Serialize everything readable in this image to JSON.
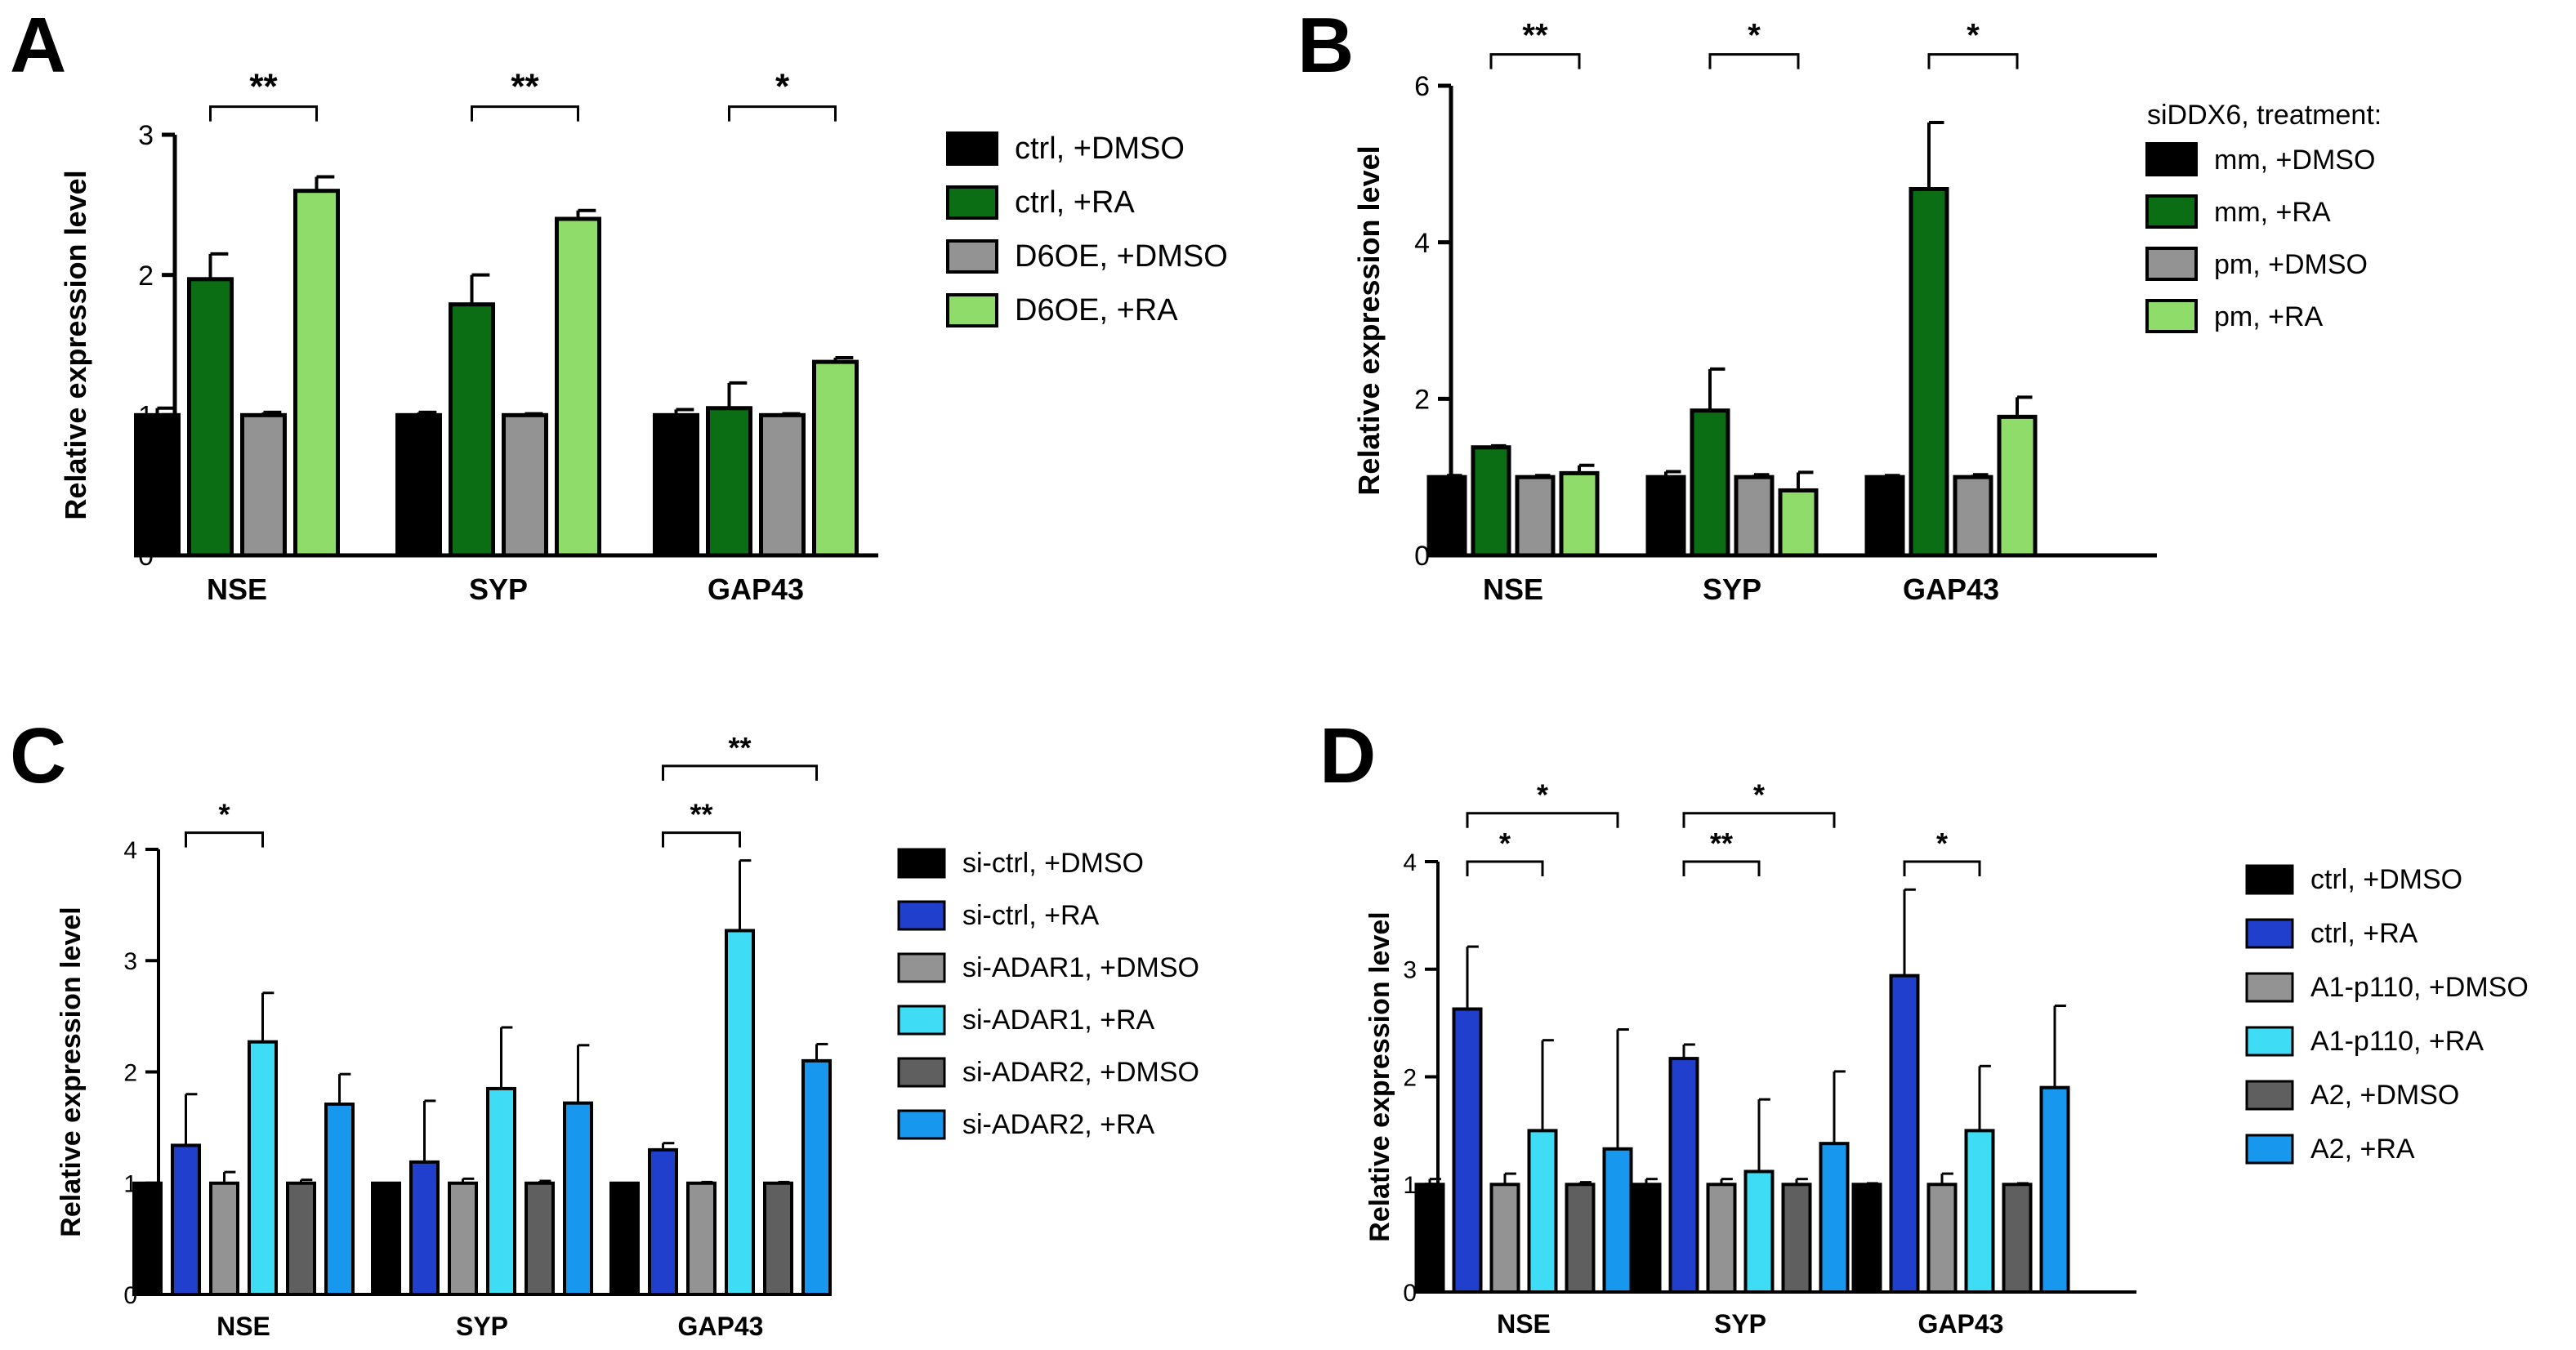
{
  "figure": {
    "panels": [
      {
        "id": "A",
        "letter": "A"
      },
      {
        "id": "B",
        "letter": "B"
      },
      {
        "id": "C",
        "letter": "C"
      },
      {
        "id": "D",
        "letter": "D"
      }
    ]
  },
  "chart_data": [
    {
      "panel": "A",
      "type": "bar",
      "title": "",
      "xlabel": "",
      "ylabel": "Relative expression level",
      "ylim": [
        0,
        3
      ],
      "yticks": [
        "0",
        "1",
        "2",
        "3"
      ],
      "categories": [
        "NSE",
        "SYP",
        "GAP43"
      ],
      "legend_title": "",
      "legend_position": "right",
      "series": [
        {
          "name": "ctrl, +DMSO",
          "color": "#000000",
          "values": [
            1.0,
            1.0,
            1.0
          ],
          "errors": [
            0.05,
            0.02,
            0.04
          ]
        },
        {
          "name": "ctrl, +RA",
          "color": "#0b6e14",
          "values": [
            1.97,
            1.79,
            1.05
          ],
          "errors": [
            0.18,
            0.21,
            0.18
          ]
        },
        {
          "name": "D6OE, +DMSO",
          "color": "#939393",
          "values": [
            1.0,
            1.0,
            1.0
          ],
          "errors": [
            0.02,
            0.01,
            0.01
          ]
        },
        {
          "name": "D6OE, +RA",
          "color": "#8fdc6b",
          "values": [
            2.6,
            2.4,
            1.38
          ],
          "errors": [
            0.1,
            0.06,
            0.03
          ]
        }
      ],
      "significance": [
        {
          "label": "**",
          "category": 0,
          "from_series": 1,
          "to_series": 3,
          "level": 3.2
        },
        {
          "label": "**",
          "category": 1,
          "from_series": 1,
          "to_series": 3,
          "level": 3.2
        },
        {
          "label": "*",
          "category": 2,
          "from_series": 1,
          "to_series": 3,
          "level": 3.2
        }
      ]
    },
    {
      "panel": "B",
      "type": "bar",
      "title": "",
      "xlabel": "",
      "ylabel": "Relative expression level",
      "ylim": [
        0,
        6
      ],
      "yticks": [
        "0",
        "2",
        "4",
        "6"
      ],
      "categories": [
        "NSE",
        "SYP",
        "GAP43"
      ],
      "legend_title": "siDDX6, treatment:",
      "legend_position": "right",
      "series": [
        {
          "name": "mm, +DMSO",
          "color": "#000000",
          "values": [
            1.0,
            1.0,
            1.0
          ],
          "errors": [
            0.02,
            0.07,
            0.02
          ]
        },
        {
          "name": "mm, +RA",
          "color": "#0b6e14",
          "values": [
            1.38,
            1.85,
            4.68
          ],
          "errors": [
            0.02,
            0.53,
            0.85
          ]
        },
        {
          "name": "pm, +DMSO",
          "color": "#939393",
          "values": [
            1.0,
            1.0,
            1.0
          ],
          "errors": [
            0.02,
            0.03,
            0.03
          ]
        },
        {
          "name": "pm, +RA",
          "color": "#8fdc6b",
          "values": [
            1.05,
            0.83,
            1.77
          ],
          "errors": [
            0.1,
            0.23,
            0.25
          ]
        }
      ],
      "significance": [
        {
          "label": "**",
          "category": 0,
          "from_series": 1,
          "to_series": 3,
          "level": 6.4
        },
        {
          "label": "*",
          "category": 1,
          "from_series": 1,
          "to_series": 3,
          "level": 6.4
        },
        {
          "label": "*",
          "category": 2,
          "from_series": 1,
          "to_series": 3,
          "level": 6.4
        }
      ]
    },
    {
      "panel": "C",
      "type": "bar",
      "title": "",
      "xlabel": "",
      "ylabel": "Relative expression level",
      "ylim": [
        0,
        4
      ],
      "yticks": [
        "0",
        "1",
        "2",
        "3",
        "4"
      ],
      "categories": [
        "NSE",
        "SYP",
        "GAP43"
      ],
      "legend_title": "",
      "legend_position": "right",
      "series": [
        {
          "name": "si-ctrl, +DMSO",
          "color": "#000000",
          "values": [
            1.0,
            1.0,
            1.0
          ],
          "errors": [
            0,
            0,
            0
          ]
        },
        {
          "name": "si-ctrl, +RA",
          "color": "#1f3fcc",
          "values": [
            1.34,
            1.19,
            1.3
          ],
          "errors": [
            0.46,
            0.55,
            0.06
          ]
        },
        {
          "name": "si-ADAR1, +DMSO",
          "color": "#939393",
          "values": [
            1.0,
            1.0,
            1.0
          ],
          "errors": [
            0.1,
            0.04,
            0.01
          ]
        },
        {
          "name": "si-ADAR1, +RA",
          "color": "#3fdcf5",
          "values": [
            2.27,
            1.85,
            3.27
          ],
          "errors": [
            0.44,
            0.55,
            0.63
          ]
        },
        {
          "name": "si-ADAR2, +DMSO",
          "color": "#5f5f5f",
          "values": [
            1.0,
            1.0,
            1.0
          ],
          "errors": [
            0.03,
            0.02,
            0.01
          ]
        },
        {
          "name": "si-ADAR2, +RA",
          "color": "#1897ee",
          "values": [
            1.71,
            1.72,
            2.1
          ],
          "errors": [
            0.27,
            0.52,
            0.15
          ]
        }
      ],
      "significance": [
        {
          "label": "*",
          "category": 0,
          "from_series": 1,
          "to_series": 3,
          "level": 4.15
        },
        {
          "label": "**",
          "category": 2,
          "from_series": 1,
          "to_series": 3,
          "level": 4.15
        },
        {
          "label": "**",
          "category": 2,
          "from_series": 1,
          "to_series": 5,
          "level": 4.75
        }
      ]
    },
    {
      "panel": "D",
      "type": "bar",
      "title": "",
      "xlabel": "",
      "ylabel": "Relative expression level",
      "ylim": [
        0,
        4
      ],
      "yticks": [
        "0",
        "1",
        "2",
        "3",
        "4"
      ],
      "categories": [
        "NSE",
        "SYP",
        "GAP43"
      ],
      "legend_title": "",
      "legend_position": "right",
      "series": [
        {
          "name": "ctrl, +DMSO",
          "color": "#000000",
          "values": [
            1.0,
            1.0,
            1.0
          ],
          "errors": [
            0.05,
            0.05,
            0.01
          ]
        },
        {
          "name": "ctrl, +RA",
          "color": "#1f3fcc",
          "values": [
            2.63,
            2.17,
            2.94
          ],
          "errors": [
            0.58,
            0.13,
            0.8
          ]
        },
        {
          "name": "A1-p110, +DMSO",
          "color": "#939393",
          "values": [
            1.0,
            1.0,
            1.0
          ],
          "errors": [
            0.1,
            0.05,
            0.1
          ]
        },
        {
          "name": "A1-p110, +RA",
          "color": "#3fdcf5",
          "values": [
            1.5,
            1.12,
            1.5
          ],
          "errors": [
            0.84,
            0.67,
            0.6
          ]
        },
        {
          "name": "A2, +DMSO",
          "color": "#5f5f5f",
          "values": [
            1.0,
            1.0,
            1.0
          ],
          "errors": [
            0.02,
            0.05,
            0.01
          ]
        },
        {
          "name": "A2, +RA",
          "color": "#1897ee",
          "values": [
            1.33,
            1.38,
            1.9
          ],
          "errors": [
            1.11,
            0.67,
            0.76
          ]
        }
      ],
      "significance": [
        {
          "label": "*",
          "category": 0,
          "from_series": 1,
          "to_series": 3,
          "level": 4.0
        },
        {
          "label": "*",
          "category": 0,
          "from_series": 1,
          "to_series": 5,
          "level": 4.45
        },
        {
          "label": "**",
          "category": 1,
          "from_series": 1,
          "to_series": 3,
          "level": 4.0
        },
        {
          "label": "*",
          "category": 1,
          "from_series": 1,
          "to_series": 5,
          "level": 4.45
        },
        {
          "label": "*",
          "category": 2,
          "from_series": 1,
          "to_series": 3,
          "level": 4.0
        }
      ]
    }
  ]
}
